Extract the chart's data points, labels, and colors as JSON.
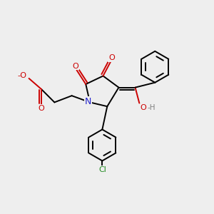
{
  "background_color": "#eeeeee",
  "bond_color": "#000000",
  "N_color": "#2222cc",
  "O_color": "#cc0000",
  "Cl_color": "#228B22",
  "H_color": "#808080",
  "line_width": 1.4,
  "dbo": 0.012,
  "ring_r": 0.095,
  "inner_ratio": 0.67,
  "xlim": [
    0,
    1
  ],
  "ylim": [
    0,
    1
  ],
  "N": [
    0.38,
    0.535
  ],
  "C2": [
    0.355,
    0.645
  ],
  "C3": [
    0.46,
    0.695
  ],
  "C4": [
    0.555,
    0.625
  ],
  "C5": [
    0.485,
    0.51
  ],
  "Cex": [
    0.655,
    0.625
  ],
  "PhCx": 0.775,
  "PhCy": 0.75,
  "ClPhCx": 0.455,
  "ClPhCy": 0.275,
  "CH2a": [
    0.27,
    0.575
  ],
  "CH2b": [
    0.165,
    0.535
  ],
  "COOH": [
    0.085,
    0.615
  ]
}
